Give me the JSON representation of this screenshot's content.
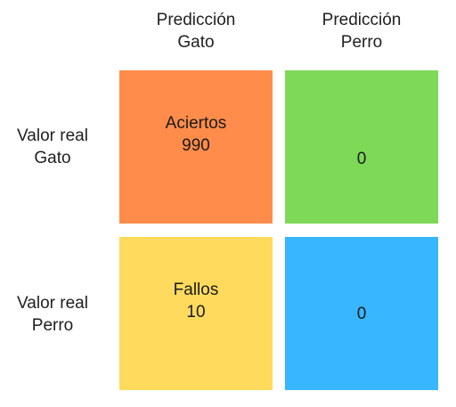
{
  "columns": [
    {
      "line1": "Predicción",
      "line2": "Gato"
    },
    {
      "line1": "Predicción",
      "line2": "Perro"
    }
  ],
  "rows": [
    {
      "line1": "Valor real",
      "line2": "Gato"
    },
    {
      "line1": "Valor real",
      "line2": "Perro"
    }
  ],
  "cells": [
    {
      "label": "Aciertos",
      "value": "990",
      "color": "#FF8C4A"
    },
    {
      "label": "",
      "value": "0",
      "color": "#7ED957"
    },
    {
      "label": "Fallos",
      "value": "10",
      "color": "#FFDA5C"
    },
    {
      "label": "",
      "value": "0",
      "color": "#38B6FF"
    }
  ]
}
